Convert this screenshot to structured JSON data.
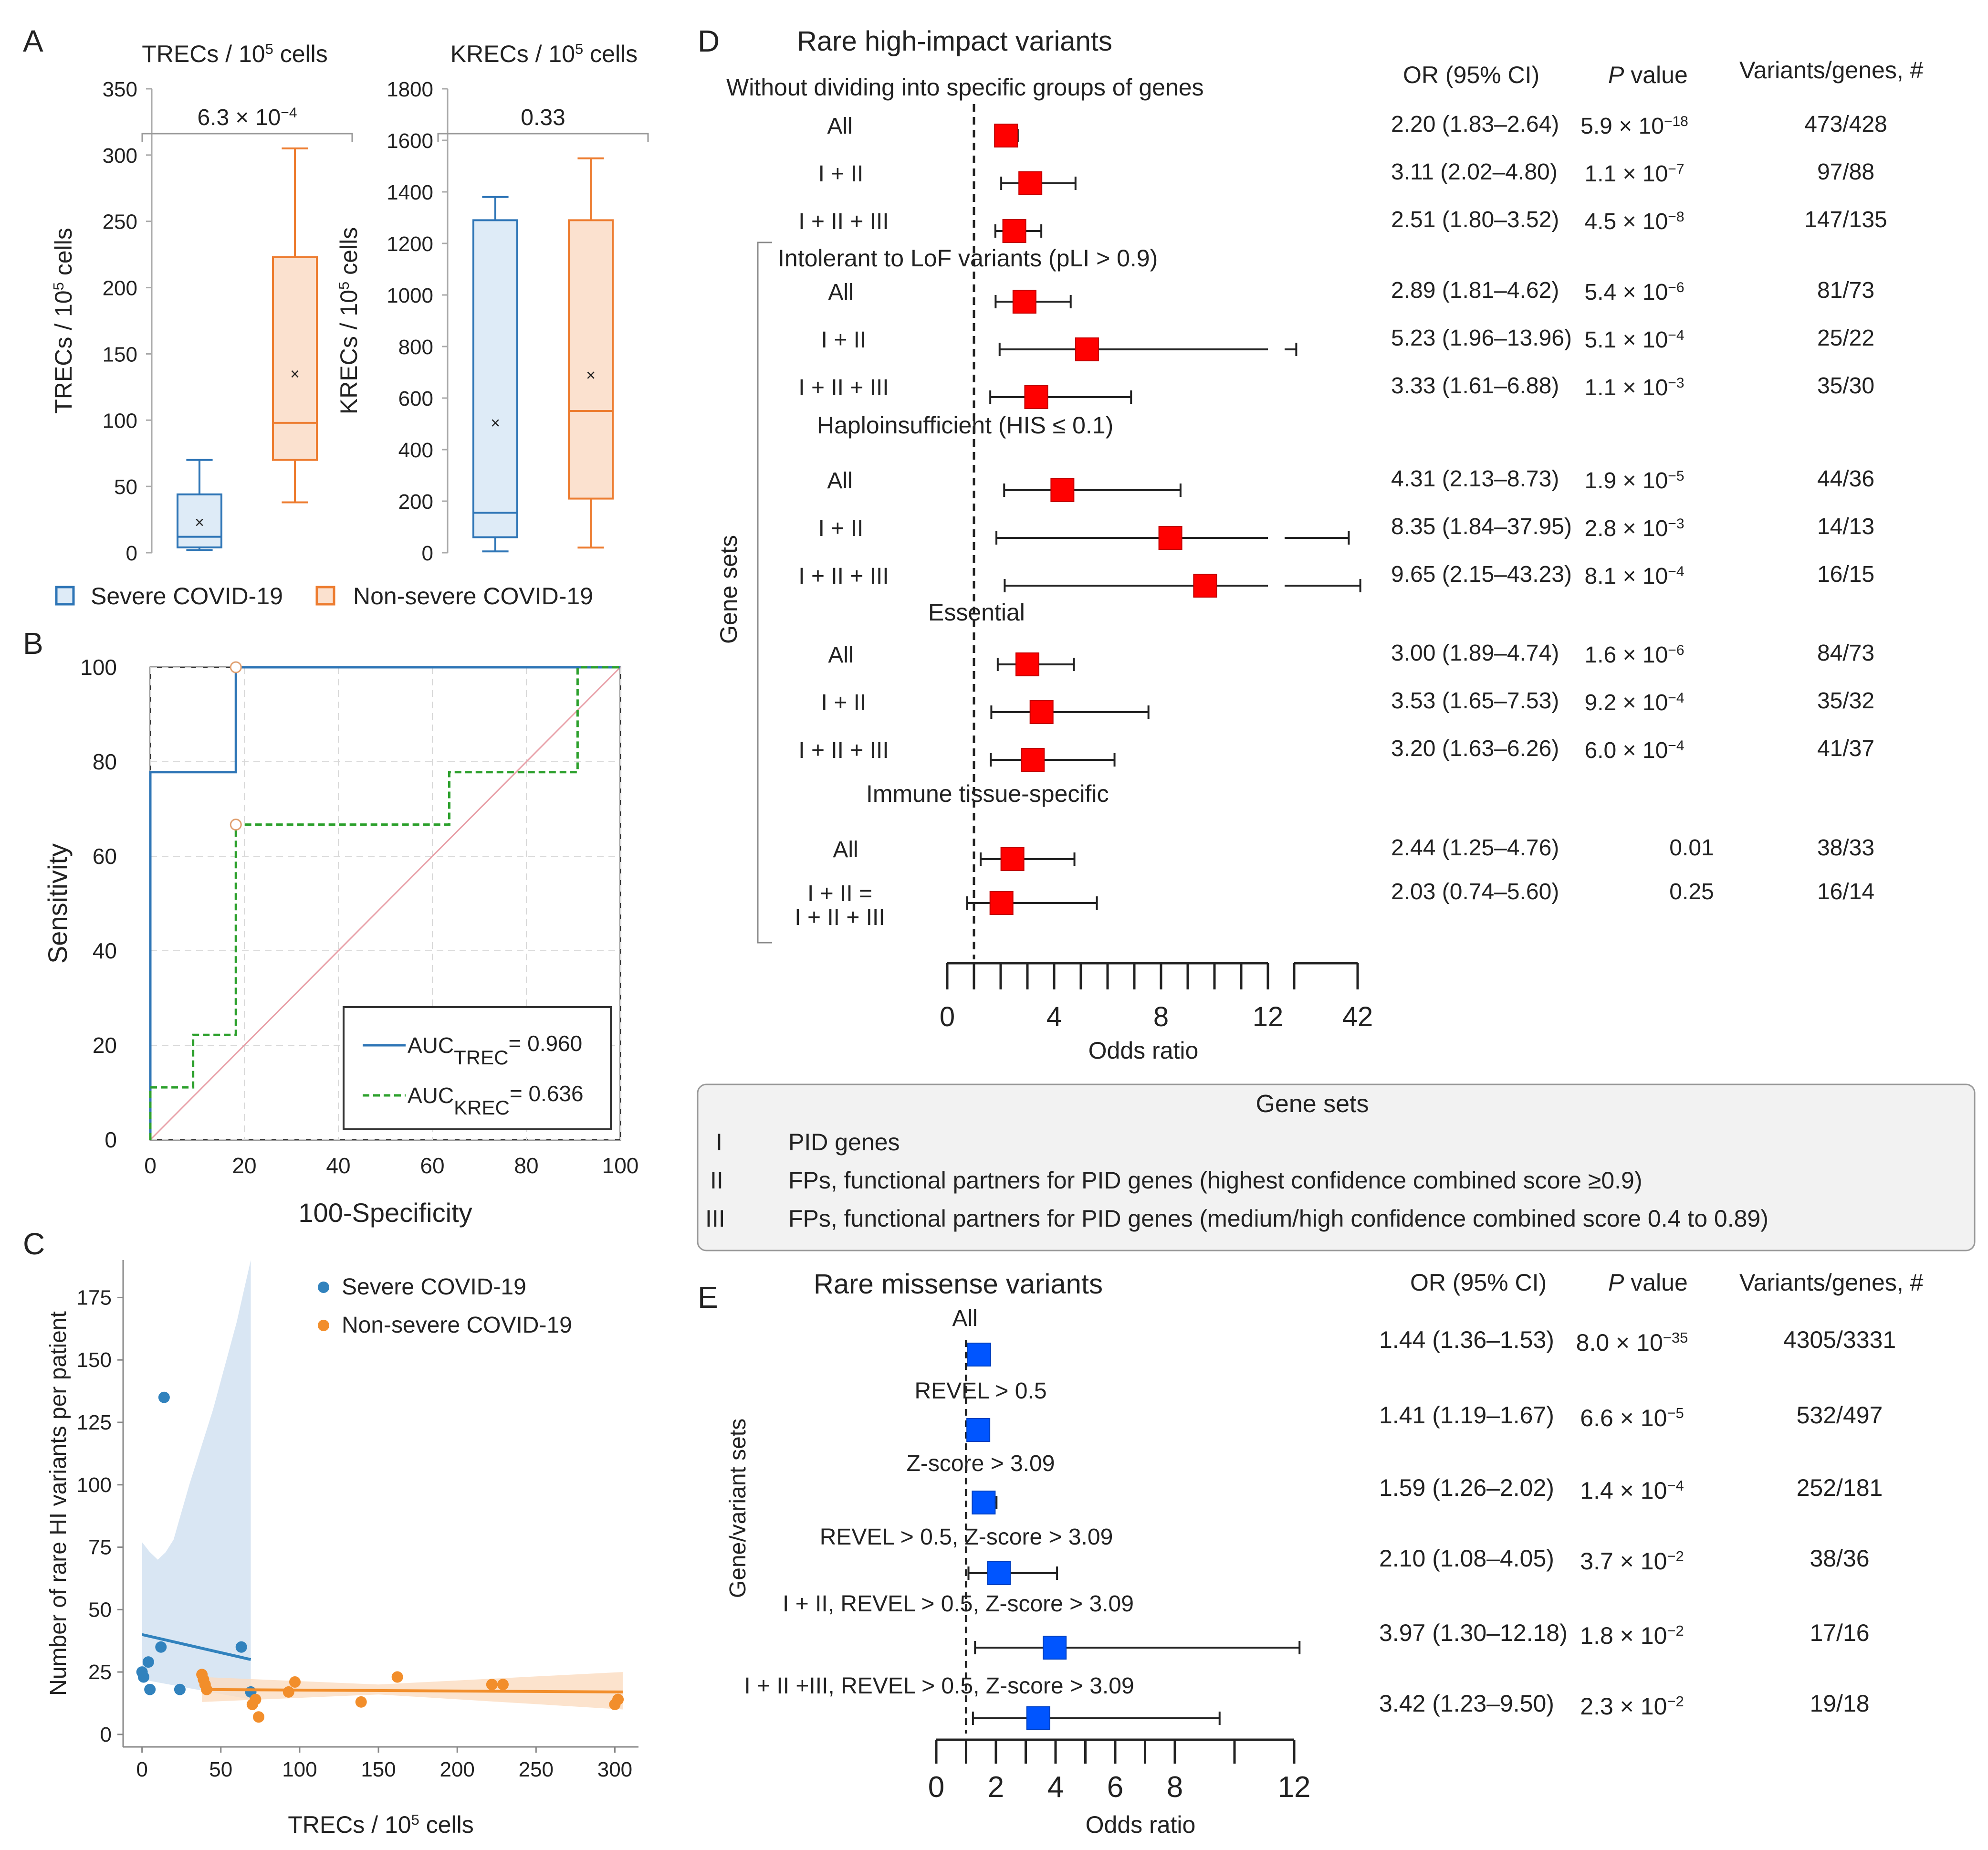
{
  "panels": {
    "A": "A",
    "B": "B",
    "C": "C",
    "D": "D",
    "E": "E"
  },
  "chart_data": [
    {
      "id": "A1",
      "type": "box",
      "title_base": "TRECs / 10",
      "title_sup": "5",
      "title_tail": " cells",
      "ylabel_base": "TRECs / 10",
      "ylabel_sup": "5",
      "ylabel_tail": " cells",
      "ylim": [
        0,
        350
      ],
      "yticks": [
        0,
        50,
        100,
        150,
        200,
        250,
        300,
        350
      ],
      "pvalue_label": "6.3 × 10",
      "pvalue_exp": "−4",
      "boxes": [
        {
          "group": "Severe COVID-19",
          "color": "#2e75b6",
          "fill": "#deebf7",
          "whisker_low": 2,
          "q1": 4,
          "median": 12,
          "q3": 44,
          "whisker_high": 70,
          "mean": 23
        },
        {
          "group": "Non-severe COVID-19",
          "color": "#ed7d31",
          "fill": "#fbe1cf",
          "whisker_low": 38,
          "q1": 70,
          "median": 98,
          "q3": 223,
          "whisker_high": 305,
          "mean": 135
        }
      ]
    },
    {
      "id": "A2",
      "type": "box",
      "title_base": "KRECs / 10",
      "title_sup": "5",
      "title_tail": " cells",
      "ylabel_base": "KRECs / 10",
      "ylabel_sup": "5",
      "ylabel_tail": " cells",
      "ylim": [
        0,
        1800
      ],
      "yticks": [
        0,
        200,
        400,
        600,
        800,
        1000,
        1200,
        1400,
        1600,
        1800
      ],
      "pvalue_label": "0.33",
      "boxes": [
        {
          "group": "Severe COVID-19",
          "color": "#2e75b6",
          "fill": "#deebf7",
          "whisker_low": 5,
          "q1": 60,
          "median": 155,
          "q3": 1290,
          "whisker_high": 1380,
          "mean": 505
        },
        {
          "group": "Non-severe COVID-19",
          "color": "#ed7d31",
          "fill": "#fbe1cf",
          "whisker_low": 20,
          "q1": 210,
          "median": 550,
          "q3": 1290,
          "whisker_high": 1530,
          "mean": 690
        }
      ]
    },
    {
      "id": "B",
      "type": "line",
      "xlabel": "100-Specificity",
      "ylabel": "Sensitivity",
      "xlim": [
        0,
        100
      ],
      "ylim": [
        0,
        100
      ],
      "xticks": [
        0,
        20,
        40,
        60,
        80,
        100
      ],
      "yticks": [
        0,
        20,
        40,
        60,
        80,
        100
      ],
      "series": [
        {
          "name": "TREC",
          "color": "#2e75b6",
          "dash": false,
          "x": [
            0,
            0,
            18.2,
            18.2,
            100
          ],
          "y": [
            0,
            77.8,
            77.8,
            100,
            100
          ],
          "marker": [
            18.2,
            100
          ]
        },
        {
          "name": "KREC",
          "color": "#2ca02c",
          "dash": true,
          "x": [
            0,
            0,
            9.1,
            9.1,
            18.2,
            18.2,
            63.6,
            63.6,
            90.9,
            90.9,
            100
          ],
          "y": [
            0,
            11.1,
            11.1,
            22.2,
            22.2,
            66.7,
            66.7,
            77.8,
            77.8,
            100,
            100
          ],
          "marker": [
            18.2,
            66.7
          ]
        }
      ],
      "legend": [
        {
          "prefix": "AUC",
          "sub": "TREC",
          "suffix": "= 0.960"
        },
        {
          "prefix": "AUC",
          "sub": "KREC",
          "suffix": "= 0.636"
        }
      ]
    },
    {
      "id": "C",
      "type": "scatter",
      "xlabel_base": "TRECs / 10",
      "xlabel_sup": "5",
      "xlabel_tail": " cells",
      "ylabel": "Number of rare HI variants per patient",
      "xlim": [
        -12,
        315
      ],
      "ylim": [
        -5,
        190
      ],
      "xticks": [
        0,
        50,
        100,
        150,
        200,
        250,
        300
      ],
      "yticks": [
        0,
        25,
        50,
        75,
        100,
        125,
        150,
        175
      ],
      "series": [
        {
          "name": "Severe COVID-19",
          "color": "#3182bd",
          "points": [
            [
              0,
              25
            ],
            [
              1,
              23
            ],
            [
              4,
              29
            ],
            [
              5,
              18
            ],
            [
              12,
              35
            ],
            [
              14,
              135
            ],
            [
              24,
              18
            ],
            [
              63,
              35
            ],
            [
              69,
              17
            ]
          ],
          "fit": [
            [
              0,
              40
            ],
            [
              69,
              30
            ]
          ],
          "band_upper": [
            [
              0,
              77
            ],
            [
              5,
              73
            ],
            [
              10,
              70
            ],
            [
              15,
              73
            ],
            [
              20,
              78
            ],
            [
              30,
              100
            ],
            [
              45,
              130
            ],
            [
              60,
              165
            ],
            [
              69,
              190
            ]
          ],
          "band_lower": [
            [
              0,
              22
            ],
            [
              69,
              14
            ]
          ]
        },
        {
          "name": "Non-severe COVID-19",
          "color": "#f28e2b",
          "points": [
            [
              38,
              24
            ],
            [
              39,
              22
            ],
            [
              40,
              20
            ],
            [
              41,
              18
            ],
            [
              70,
              12
            ],
            [
              72,
              14
            ],
            [
              74,
              7
            ],
            [
              93,
              17
            ],
            [
              97,
              21
            ],
            [
              139,
              13
            ],
            [
              162,
              23
            ],
            [
              222,
              20
            ],
            [
              229,
              20
            ],
            [
              300,
              12
            ],
            [
              302,
              14
            ]
          ],
          "fit": [
            [
              38,
              18
            ],
            [
              305,
              17
            ]
          ],
          "band_upper": [
            [
              38,
              23
            ],
            [
              150,
              20
            ],
            [
              305,
              25
            ]
          ],
          "band_lower": [
            [
              38,
              13
            ],
            [
              150,
              16
            ],
            [
              305,
              10
            ]
          ]
        }
      ]
    },
    {
      "id": "D",
      "type": "forest",
      "title": "Rare high-impact variants",
      "col_or": "OR (95% CI)",
      "col_p": "P",
      "col_p_tail": " value",
      "col_n": "Variants/genes, #",
      "y_axis_label": "Gene sets",
      "xlabel": "Odds ratio",
      "xticks": [
        0,
        4,
        8,
        12,
        42
      ],
      "reference": 1,
      "headers": [
        "Without dividing into specific groups of genes",
        "Intolerant to LoF variants (pLI > 0.9)",
        "Haploinsufficient (HIS ≤ 0.1)",
        "Essential",
        "Immune tissue-specific"
      ],
      "rows": [
        {
          "label": "All",
          "or": 2.2,
          "lo": 1.83,
          "hi": 2.64,
          "or_text": "2.20 (1.83–2.64)",
          "p_base": "5.9 × 10",
          "p_exp": "−18",
          "n": "473/428"
        },
        {
          "label": "I + II",
          "or": 3.11,
          "lo": 2.02,
          "hi": 4.8,
          "or_text": "3.11 (2.02–4.80)",
          "p_base": "1.1 × 10",
          "p_exp": "−7",
          "n": "97/88"
        },
        {
          "label": "I + II + III",
          "or": 2.51,
          "lo": 1.8,
          "hi": 3.52,
          "or_text": "2.51 (1.80–3.52)",
          "p_base": "4.5 × 10",
          "p_exp": "−8",
          "n": "147/135"
        },
        {
          "label": "All",
          "or": 2.89,
          "lo": 1.81,
          "hi": 4.62,
          "or_text": "2.89 (1.81–4.62)",
          "p_base": "5.4 × 10",
          "p_exp": "−6",
          "n": "81/73"
        },
        {
          "label": "I + II",
          "or": 5.23,
          "lo": 1.96,
          "hi": 13.96,
          "or_text": "5.23 (1.96–13.96)",
          "p_base": "5.1 × 10",
          "p_exp": "−4",
          "n": "25/22"
        },
        {
          "label": "I + II + III",
          "or": 3.33,
          "lo": 1.61,
          "hi": 6.88,
          "or_text": "3.33 (1.61–6.88)",
          "p_base": "1.1 × 10",
          "p_exp": "−3",
          "n": "35/30"
        },
        {
          "label": "All",
          "or": 4.31,
          "lo": 2.13,
          "hi": 8.73,
          "or_text": "4.31 (2.13–8.73)",
          "p_base": "1.9 × 10",
          "p_exp": "−5",
          "n": "44/36"
        },
        {
          "label": "I + II",
          "or": 8.35,
          "lo": 1.84,
          "hi": 37.95,
          "or_text": "8.35 (1.84–37.95)",
          "p_base": "2.8 × 10",
          "p_exp": "−3",
          "n": "14/13"
        },
        {
          "label": "I + II + III",
          "or": 9.65,
          "lo": 2.15,
          "hi": 43.23,
          "or_text": "9.65 (2.15–43.23)",
          "p_base": "8.1 × 10",
          "p_exp": "−4",
          "n": "16/15"
        },
        {
          "label": "All",
          "or": 3.0,
          "lo": 1.89,
          "hi": 4.74,
          "or_text": "3.00 (1.89–4.74)",
          "p_base": "1.6 × 10",
          "p_exp": "−6",
          "n": "84/73"
        },
        {
          "label": "I + II",
          "or": 3.53,
          "lo": 1.65,
          "hi": 7.53,
          "or_text": "3.53 (1.65–7.53)",
          "p_base": "9.2 × 10",
          "p_exp": "−4",
          "n": "35/32"
        },
        {
          "label": "I + II + III",
          "or": 3.2,
          "lo": 1.63,
          "hi": 6.26,
          "or_text": "3.20 (1.63–6.26)",
          "p_base": "6.0 × 10",
          "p_exp": "−4",
          "n": "41/37"
        },
        {
          "label": "All",
          "or": 2.44,
          "lo": 1.25,
          "hi": 4.76,
          "or_text": "2.44 (1.25–4.76)",
          "p_base": "0.01",
          "p_exp": "",
          "n": "38/33"
        },
        {
          "label": "I + II =",
          "label2": "I + II + III",
          "or": 2.03,
          "lo": 0.74,
          "hi": 5.6,
          "or_text": "2.03 (0.74–5.60)",
          "p_base": "0.25",
          "p_exp": "",
          "n": "16/14"
        }
      ]
    },
    {
      "id": "E",
      "type": "forest",
      "title": "Rare missense variants",
      "col_or": "OR (95% CI)",
      "col_p": "P",
      "col_p_tail": " value",
      "col_n": "Variants/genes, #",
      "y_axis_label": "Gene/variant sets",
      "xlabel": "Odds ratio",
      "xticks": [
        0,
        2,
        4,
        6,
        8,
        12
      ],
      "reference": 1,
      "rows": [
        {
          "label": "All",
          "or": 1.44,
          "lo": 1.36,
          "hi": 1.53,
          "or_text": "1.44 (1.36–1.53)",
          "p_base": "8.0 × 10",
          "p_exp": "−35",
          "n": "4305/3331"
        },
        {
          "label": "REVEL > 0.5",
          "or": 1.41,
          "lo": 1.19,
          "hi": 1.67,
          "or_text": "1.41 (1.19–1.67)",
          "p_base": "6.6 × 10",
          "p_exp": "−5",
          "n": "532/497"
        },
        {
          "label": "Z-score > 3.09",
          "or": 1.59,
          "lo": 1.26,
          "hi": 2.02,
          "or_text": "1.59 (1.26–2.02)",
          "p_base": "1.4 × 10",
          "p_exp": "−4",
          "n": "252/181"
        },
        {
          "label": "REVEL > 0.5, Z-score > 3.09",
          "or": 2.1,
          "lo": 1.08,
          "hi": 4.05,
          "or_text": "2.10 (1.08–4.05)",
          "p_base": "3.7 × 10",
          "p_exp": "−2",
          "n": "38/36"
        },
        {
          "label": "I + II, REVEL > 0.5, Z-score > 3.09",
          "or": 3.97,
          "lo": 1.3,
          "hi": 12.18,
          "or_text": "3.97 (1.30–12.18)",
          "p_base": "1.8 × 10",
          "p_exp": "−2",
          "n": "17/16"
        },
        {
          "label": "I + II +III, REVEL > 0.5, Z-score > 3.09",
          "or": 3.42,
          "lo": 1.23,
          "hi": 9.5,
          "or_text": "3.42 (1.23–9.50)",
          "p_base": "2.3 × 10",
          "p_exp": "−2",
          "n": "19/18"
        }
      ]
    }
  ],
  "legend_a": {
    "severe": "Severe COVID-19",
    "nonsevere": "Non-severe COVID-19"
  },
  "gene_sets_box": {
    "title": "Gene sets",
    "items": [
      {
        "code": "I",
        "text": "PID genes"
      },
      {
        "code": "II",
        "text": "FPs, functional partners for PID genes (highest confidence combined score ≥0.9)"
      },
      {
        "code": "III",
        "text": "FPs, functional partners for PID genes (medium/high confidence combined score 0.4 to 0.89)"
      }
    ]
  },
  "colors": {
    "blue": "#2e75b6",
    "orange": "#ed7d31",
    "red": "#ff0000",
    "eblue": "#0055ff",
    "green": "#2ca02c"
  }
}
